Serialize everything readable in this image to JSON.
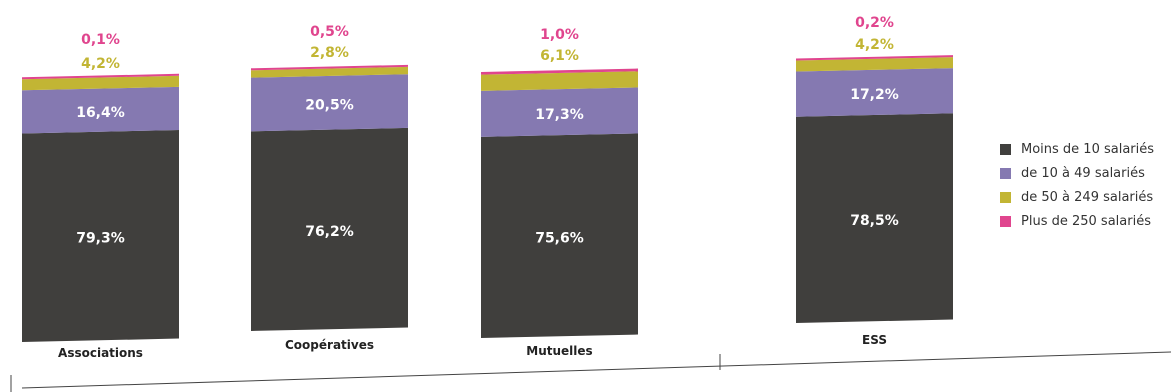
{
  "chart_data": {
    "type": "bar",
    "stacked": true,
    "categories": [
      "Associations",
      "Coopératives",
      "Mutuelles",
      "ESS"
    ],
    "series": [
      {
        "name": "Moins de 10 salariés",
        "values": [
          79.3,
          76.2,
          75.6,
          78.5
        ],
        "labels": [
          "79,3%",
          "76,2%",
          "75,6%",
          "78,5%"
        ]
      },
      {
        "name": "de 10 à 49 salariés",
        "values": [
          16.4,
          20.5,
          17.3,
          17.2
        ],
        "labels": [
          "16,4%",
          "20,5%",
          "17,3%",
          "17,2%"
        ]
      },
      {
        "name": "de 50 à 249 salariés",
        "values": [
          4.2,
          2.8,
          6.1,
          4.2
        ],
        "labels": [
          "4,2%",
          "2,8%",
          "6,1%",
          "4,2%"
        ]
      },
      {
        "name": "Plus de 250 salariés",
        "values": [
          0.1,
          0.5,
          1.0,
          0.2
        ],
        "labels": [
          "0,1%",
          "0,5%",
          "1,0%",
          "0,2%"
        ]
      }
    ],
    "colors": [
      "#403f3d",
      "#8579b1",
      "#c2b534",
      "#e0458e"
    ],
    "label_colors": [
      "#ffffff",
      "#ffffff",
      "#c2b534",
      "#e0458e"
    ],
    "ylim": [
      0,
      100
    ],
    "legend_position": "right",
    "grid": false
  }
}
